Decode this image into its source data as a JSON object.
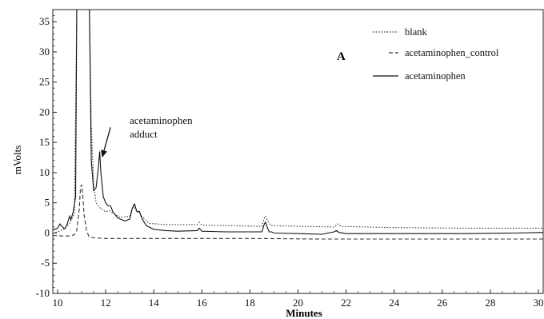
{
  "chart_data": {
    "type": "line",
    "xlabel": "Minutes",
    "ylabel": "mVolts",
    "panel_label": "A",
    "xlim": [
      9.8,
      30.2
    ],
    "ylim": [
      -10,
      37
    ],
    "x_ticks": [
      10,
      12,
      14,
      16,
      18,
      20,
      22,
      24,
      26,
      28,
      30
    ],
    "y_ticks": [
      -10,
      -5,
      0,
      5,
      10,
      15,
      20,
      25,
      30,
      35
    ],
    "annotation": {
      "lines": [
        "acetaminophen",
        "adduct"
      ],
      "points_to": [
        11.75,
        12.5
      ]
    },
    "series": [
      {
        "name": "blank",
        "style": "dotted",
        "color": "#333333",
        "x": [
          9.8,
          10.1,
          10.3,
          10.5,
          10.7,
          10.8,
          10.85,
          10.95,
          11.2,
          11.32,
          11.4,
          11.5,
          11.6,
          11.7,
          11.8,
          11.9,
          12.0,
          12.15,
          12.3,
          12.6,
          13.0,
          13.15,
          13.25,
          13.35,
          13.5,
          13.8,
          14.5,
          15.8,
          15.9,
          16.0,
          17.4,
          18.5,
          18.6,
          18.65,
          18.7,
          18.85,
          19.0,
          21.5,
          21.65,
          21.8,
          24,
          27,
          30.2
        ],
        "y": [
          0,
          0.3,
          0.8,
          1.6,
          3.2,
          38,
          38,
          38,
          38,
          38,
          18,
          8,
          5,
          4.5,
          4,
          3.8,
          3.5,
          3.7,
          3.3,
          2.6,
          2.8,
          4.6,
          3.8,
          3.6,
          2.8,
          1.6,
          1.4,
          1.4,
          1.8,
          1.3,
          1.2,
          1.1,
          2.5,
          2.8,
          2.3,
          1.3,
          1.2,
          1.0,
          1.5,
          1.1,
          0.9,
          0.8,
          0.8
        ]
      },
      {
        "name": "acetaminophen_control",
        "style": "dashed",
        "color": "#333333",
        "x": [
          9.8,
          10.2,
          10.5,
          10.7,
          10.8,
          10.9,
          10.95,
          11.0,
          11.05,
          11.1,
          11.2,
          11.3,
          11.5,
          12,
          13,
          15,
          18,
          21,
          24,
          27,
          30.2
        ],
        "y": [
          -0.4,
          -0.5,
          -0.5,
          -0.3,
          0.5,
          4,
          7.5,
          8,
          6,
          3,
          0.5,
          -0.6,
          -0.8,
          -0.9,
          -0.9,
          -0.9,
          -0.9,
          -1.0,
          -1.0,
          -1.0,
          -1.0
        ],
        "pointer": {
          "from": [
            12.2,
            17.5
          ],
          "to": [
            11.85,
            12.5
          ]
        }
      },
      {
        "name": "acetaminophen",
        "style": "solid",
        "color": "#111111",
        "x": [
          9.8,
          10.0,
          10.1,
          10.2,
          10.3,
          10.4,
          10.5,
          10.55,
          10.65,
          10.75,
          10.8,
          10.85,
          10.95,
          11.0,
          11.2,
          11.32,
          11.4,
          11.5,
          11.6,
          11.7,
          11.75,
          11.8,
          11.9,
          12.0,
          12.1,
          12.2,
          12.3,
          12.5,
          12.8,
          13.0,
          13.1,
          13.2,
          13.3,
          13.4,
          13.5,
          13.6,
          13.7,
          14,
          14.5,
          15,
          15.8,
          15.9,
          16.0,
          17,
          18.5,
          18.6,
          18.65,
          18.7,
          18.8,
          18.9,
          19,
          21,
          21.5,
          21.6,
          21.7,
          22,
          23,
          25,
          27,
          29,
          30.2
        ],
        "y": [
          0.5,
          0.8,
          1.5,
          1.0,
          0.7,
          1.5,
          2.8,
          2.2,
          3.5,
          6,
          38,
          38,
          38,
          38,
          38,
          38,
          12,
          7,
          7.5,
          11,
          13.5,
          10,
          6,
          5,
          4.5,
          4.5,
          3.5,
          2.5,
          2.0,
          2.3,
          4.0,
          4.8,
          3.5,
          3.6,
          2.5,
          1.8,
          1.2,
          0.6,
          0.4,
          0.3,
          0.4,
          0.8,
          0.3,
          0.2,
          0.2,
          1.5,
          1.8,
          1.2,
          0.2,
          0.2,
          0.0,
          -0.2,
          0.2,
          0.4,
          0.1,
          -0.1,
          -0.1,
          -0.1,
          -0.1,
          0.0,
          0.1
        ]
      }
    ]
  }
}
